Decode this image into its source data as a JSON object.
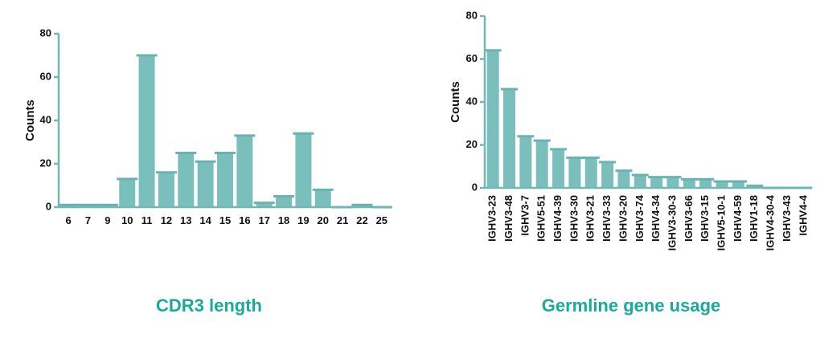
{
  "colors": {
    "bar": "#7bbfbc",
    "bar_cap": "#6bb3b0",
    "axis": "#6fb8b4",
    "caption": "#1aa99a"
  },
  "chart_data": [
    {
      "type": "bar",
      "title": "",
      "xlabel": "",
      "ylabel": "Counts",
      "ylim": [
        0,
        80
      ],
      "yticks": [
        0,
        20,
        40,
        60,
        80
      ],
      "categories": [
        "6",
        "7",
        "9",
        "10",
        "11",
        "12",
        "13",
        "14",
        "15",
        "16",
        "17",
        "18",
        "19",
        "20",
        "21",
        "22",
        "25"
      ],
      "values": [
        1,
        1,
        1,
        13,
        70,
        16,
        25,
        21,
        25,
        33,
        2,
        5,
        34,
        8,
        0,
        1,
        0
      ],
      "grid": false,
      "caption": "CDR3 length"
    },
    {
      "type": "bar",
      "title": "",
      "xlabel": "",
      "ylabel": "Counts",
      "ylim": [
        0,
        80
      ],
      "yticks": [
        0,
        20,
        40,
        60,
        80
      ],
      "categories": [
        "IGHV3-23",
        "IGHV3-48",
        "IGHV3-7",
        "IGHV5-51",
        "IGHV4-39",
        "IGHV3-30",
        "IGHV3-21",
        "IGHV3-33",
        "IGHV3-20",
        "IGHV3-74",
        "IGHV4-34",
        "IGHV3-30-3",
        "IGHV3-66",
        "IGHV3-15",
        "IGHV5-10-1",
        "IGHV4-59",
        "IGHV1-18",
        "IGHV4-30-4",
        "IGHV3-43",
        "IGHV4-4"
      ],
      "values": [
        64,
        46,
        24,
        22,
        18,
        14,
        14,
        12,
        8,
        6,
        5,
        5,
        4,
        4,
        3,
        3,
        1,
        0,
        0,
        0
      ],
      "grid": false,
      "caption": "Germline gene usage"
    }
  ]
}
